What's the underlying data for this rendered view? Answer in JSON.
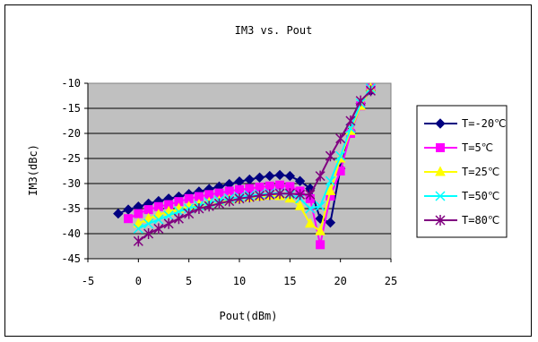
{
  "chart_data": {
    "type": "line",
    "title": "IM3 vs. Pout",
    "xlabel": "Pout(dBm)",
    "ylabel": "IM3(dBc)",
    "xlim": [
      -5,
      25
    ],
    "ylim": [
      -45,
      -10
    ],
    "x_ticks": [
      "-5",
      "0",
      "5",
      "10",
      "15",
      "20",
      "25"
    ],
    "y_ticks": [
      "-10",
      "-15",
      "-20",
      "-25",
      "-30",
      "-35",
      "-40",
      "-45"
    ],
    "grid": true,
    "plot_background": "#c0c0c0",
    "legend_position": "right",
    "series": [
      {
        "name": "T=-20℃",
        "color": "#000080",
        "marker": "diamond",
        "x": [
          -2.0,
          -1.0,
          0.0,
          1.0,
          2.0,
          3.0,
          4.0,
          5.0,
          6.0,
          7.0,
          8.0,
          9.0,
          10.0,
          11.0,
          12.0,
          13.0,
          14.0,
          15.0,
          16.0,
          17.0,
          18.0,
          19.0,
          20.0,
          21.0,
          22.0,
          23.0
        ],
        "y": [
          -36.0,
          -35.2,
          -34.6,
          -34.0,
          -33.5,
          -33.0,
          -32.6,
          -32.1,
          -31.6,
          -31.1,
          -30.6,
          -30.1,
          -29.6,
          -29.2,
          -28.8,
          -28.5,
          -28.3,
          -28.5,
          -29.5,
          -31.0,
          -37.0,
          -37.8,
          -27.0,
          -19.5,
          -14.0,
          -11.5
        ]
      },
      {
        "name": "T=5℃",
        "color": "#ff00ff",
        "marker": "square",
        "x": [
          -1.0,
          0.0,
          1.0,
          2.0,
          3.0,
          4.0,
          5.0,
          6.0,
          7.0,
          8.0,
          9.0,
          10.0,
          11.0,
          12.0,
          13.0,
          14.0,
          15.0,
          16.0,
          17.0,
          18.0,
          19.0,
          20.0,
          21.0,
          22.0,
          23.0
        ],
        "y": [
          -37.0,
          -36.0,
          -35.2,
          -34.6,
          -34.2,
          -33.6,
          -33.0,
          -32.6,
          -32.2,
          -31.9,
          -31.5,
          -31.2,
          -31.0,
          -30.7,
          -30.5,
          -30.3,
          -30.6,
          -31.5,
          -33.0,
          -42.2,
          -32.5,
          -27.5,
          -20.0,
          -14.5,
          -11.0
        ]
      },
      {
        "name": "T=25℃",
        "color": "#ffff00",
        "marker": "triangle",
        "x": [
          0.0,
          1.0,
          2.0,
          3.0,
          4.0,
          5.0,
          6.0,
          7.0,
          8.0,
          9.0,
          10.0,
          11.0,
          12.0,
          13.0,
          14.0,
          15.0,
          16.0,
          17.0,
          18.0,
          19.0,
          20.0,
          21.0,
          22.0,
          23.0
        ],
        "y": [
          -38.0,
          -37.0,
          -36.2,
          -35.6,
          -35.0,
          -34.6,
          -34.2,
          -33.8,
          -33.5,
          -33.2,
          -33.0,
          -32.8,
          -32.6,
          -32.4,
          -32.5,
          -33.0,
          -34.5,
          -38.0,
          -39.5,
          -31.5,
          -25.0,
          -19.5,
          -14.5,
          -11.0
        ]
      },
      {
        "name": "T=50℃",
        "color": "#00ffff",
        "marker": "x",
        "x": [
          0.0,
          1.0,
          2.0,
          3.0,
          4.0,
          5.0,
          6.0,
          7.0,
          8.0,
          9.0,
          10.0,
          11.0,
          12.0,
          13.0,
          14.0,
          15.0,
          16.0,
          17.0,
          18.0,
          19.0,
          20.0,
          21.0,
          22.0,
          23.0
        ],
        "y": [
          -39.0,
          -38.0,
          -37.2,
          -36.4,
          -35.6,
          -35.0,
          -34.4,
          -33.8,
          -33.4,
          -33.0,
          -32.7,
          -32.4,
          -32.2,
          -32.0,
          -31.9,
          -32.2,
          -33.0,
          -35.0,
          -34.5,
          -29.5,
          -24.5,
          -19.0,
          -14.0,
          -11.0
        ]
      },
      {
        "name": "T=80℃",
        "color": "#800080",
        "marker": "asterisk",
        "x": [
          0.0,
          1.0,
          2.0,
          3.0,
          4.0,
          5.0,
          6.0,
          7.0,
          8.0,
          9.0,
          10.0,
          11.0,
          12.0,
          13.0,
          14.0,
          15.0,
          16.0,
          17.0,
          18.0,
          19.0,
          20.0,
          21.0,
          22.0,
          23.0
        ],
        "y": [
          -41.5,
          -40.0,
          -39.0,
          -38.0,
          -37.0,
          -36.0,
          -35.0,
          -34.5,
          -34.0,
          -33.5,
          -33.0,
          -32.7,
          -32.4,
          -32.2,
          -32.0,
          -32.0,
          -32.2,
          -32.2,
          -28.5,
          -24.5,
          -21.0,
          -17.5,
          -13.5,
          -11.5
        ]
      }
    ]
  }
}
